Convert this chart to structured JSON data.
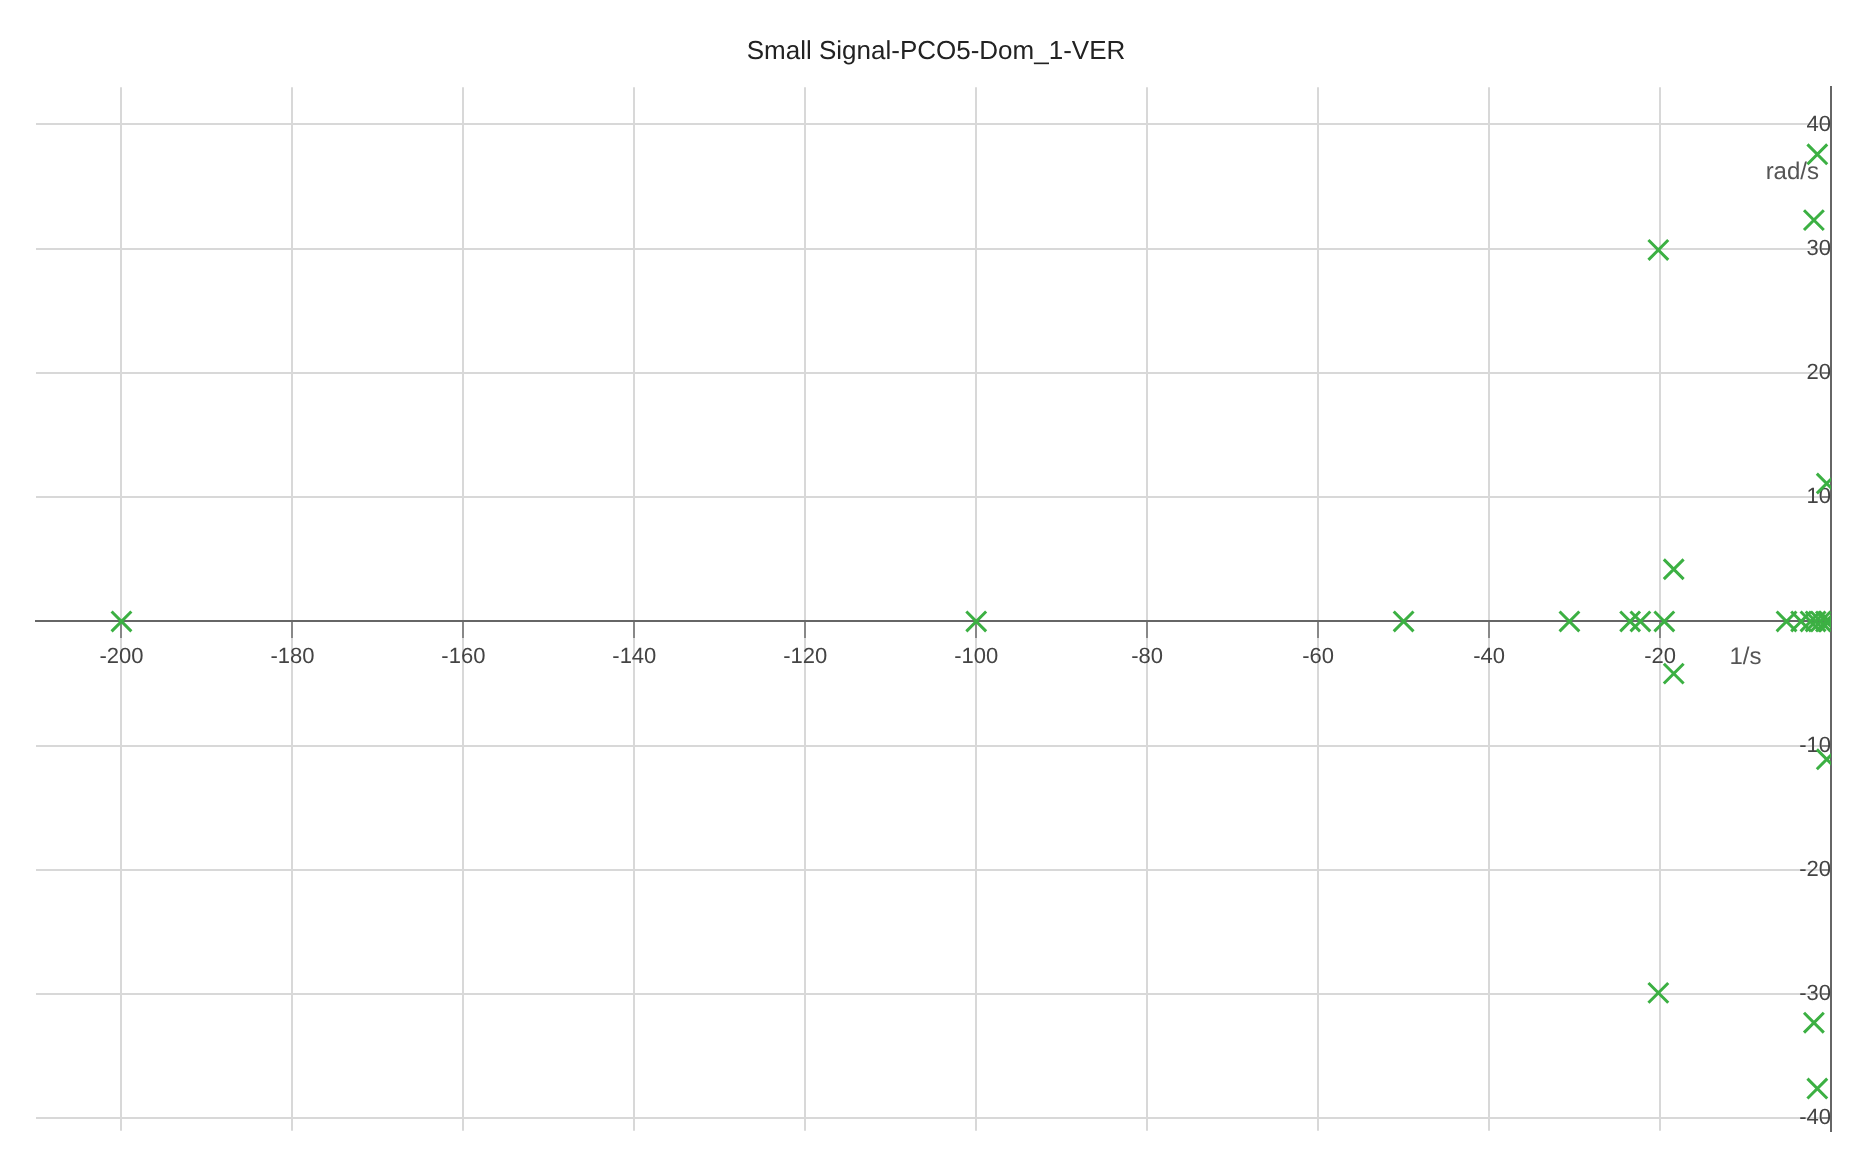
{
  "chart_data": {
    "type": "scatter",
    "title": "Small Signal-PCO5-Dom_1-VER",
    "xlabel": "1/s",
    "ylabel": "rad/s",
    "x": [
      -200,
      -100,
      -50,
      -30.6,
      -23.5,
      -22.3,
      -19.5,
      -5.2,
      -3.5,
      -2.4,
      -1.8,
      -1.2,
      -0.6,
      -0.2,
      -20.2,
      -20.2,
      -18.4,
      -18.4,
      -1.6,
      -1.6,
      -2,
      -2,
      -0.5,
      -0.5
    ],
    "series": [
      {
        "color": "#3cb043",
        "values": [
          0,
          0,
          0,
          0,
          0,
          0,
          0,
          0,
          0,
          0,
          0,
          0,
          0,
          0,
          29.9,
          -29.9,
          4.2,
          -4.2,
          37.6,
          -37.6,
          32.3,
          -32.3,
          11.1,
          -11.1
        ]
      }
    ],
    "xlim": [
      -210,
      0
    ],
    "ylim": [
      -41,
      43
    ],
    "xticks": [
      -200,
      -180,
      -160,
      -140,
      -120,
      -100,
      -80,
      -60,
      -40,
      -20
    ],
    "yticks": [
      -40,
      -30,
      -20,
      -10,
      10,
      20,
      30,
      40
    ],
    "grid": true,
    "marker": "cross",
    "legend": false
  }
}
